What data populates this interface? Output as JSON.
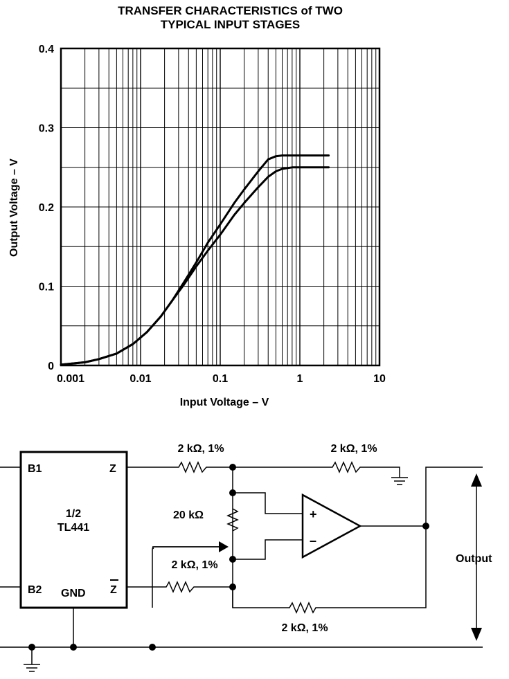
{
  "chart_data": {
    "type": "line",
    "title_lines": [
      "TRANSFER CHARACTERISTICS of TWO",
      "TYPICAL INPUT STAGES"
    ],
    "xlabel": "Input Voltage – V",
    "ylabel": "Output Voltage – V",
    "x_scale": "log",
    "xlim": [
      0.001,
      10
    ],
    "ylim": [
      0,
      0.4
    ],
    "x_ticks": [
      {
        "value": 0.001,
        "label": "0.001"
      },
      {
        "value": 0.01,
        "label": "0.01"
      },
      {
        "value": 0.1,
        "label": "0.1"
      },
      {
        "value": 1,
        "label": "1"
      },
      {
        "value": 10,
        "label": "10"
      }
    ],
    "y_ticks": [
      {
        "value": 0,
        "label": "0"
      },
      {
        "value": 0.1,
        "label": "0.1"
      },
      {
        "value": 0.2,
        "label": "0.2"
      },
      {
        "value": 0.3,
        "label": "0.3"
      },
      {
        "value": 0.4,
        "label": "0.4"
      }
    ],
    "grid": true,
    "series": [
      {
        "x": [
          0.001,
          0.002,
          0.003,
          0.005,
          0.008,
          0.012,
          0.018,
          0.025,
          0.035,
          0.05,
          0.07,
          0.1,
          0.15,
          0.2,
          0.3,
          0.4,
          0.5,
          0.6,
          0.8,
          1,
          1.5,
          2.3
        ],
        "y": [
          0.001,
          0.004,
          0.008,
          0.015,
          0.027,
          0.042,
          0.062,
          0.082,
          0.102,
          0.125,
          0.145,
          0.165,
          0.19,
          0.205,
          0.225,
          0.238,
          0.245,
          0.248,
          0.25,
          0.25,
          0.25,
          0.25
        ]
      },
      {
        "x": [
          0.001,
          0.002,
          0.003,
          0.005,
          0.008,
          0.012,
          0.018,
          0.025,
          0.035,
          0.05,
          0.07,
          0.1,
          0.15,
          0.2,
          0.3,
          0.4,
          0.5,
          0.6,
          0.8,
          1,
          1.5,
          2.3
        ],
        "y": [
          0.001,
          0.004,
          0.008,
          0.015,
          0.027,
          0.042,
          0.062,
          0.082,
          0.105,
          0.13,
          0.155,
          0.178,
          0.205,
          0.222,
          0.245,
          0.26,
          0.264,
          0.265,
          0.265,
          0.265,
          0.265,
          0.265
        ]
      }
    ]
  },
  "circuit": {
    "ic_labels": {
      "b1": "B1",
      "z": "Z",
      "fraction": "1/2",
      "part": "TL441",
      "b2": "B2",
      "gnd": "GND",
      "zbar": "Z"
    },
    "r_top_left": "2 kΩ, 1%",
    "r_top_right": "2 kΩ, 1%",
    "pot": "20 kΩ",
    "r_mid": "2 kΩ, 1%",
    "r_bottom": "2 kΩ, 1%",
    "opamp_plus": "+",
    "opamp_minus": "–",
    "output_label": "Output"
  }
}
